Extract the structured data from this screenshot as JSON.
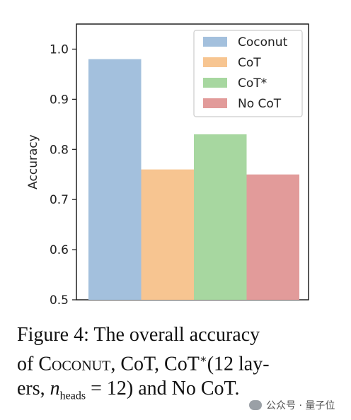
{
  "chart_data": {
    "type": "bar",
    "categories": [
      "Coconut",
      "CoT",
      "CoT*",
      "No CoT"
    ],
    "values": [
      0.98,
      0.76,
      0.83,
      0.75
    ],
    "colors": [
      "#a3c0dd",
      "#f7c591",
      "#a7d7a0",
      "#e29b9a"
    ],
    "ylabel": "Accuracy",
    "ylim": [
      0.5,
      1.05
    ],
    "yticks": [
      "0.5",
      "0.6",
      "0.7",
      "0.8",
      "0.9",
      "1.0"
    ],
    "legend": [
      "Coconut",
      "CoT",
      "CoT*",
      "No CoT"
    ],
    "legend_position": "top-right",
    "grid": false
  },
  "caption": {
    "fig": "Figure 4:",
    "line1": "The overall accuracy",
    "of": "of",
    "coconut": "Coconut",
    "rest1": ", CoT, CoT",
    "star": "∗",
    "rest2": "(12 lay-",
    "line3a": "ers,",
    "n": "n",
    "heads": "heads",
    "line3b": "= 12) and No CoT."
  },
  "watermark": "公众号 · 量子位"
}
